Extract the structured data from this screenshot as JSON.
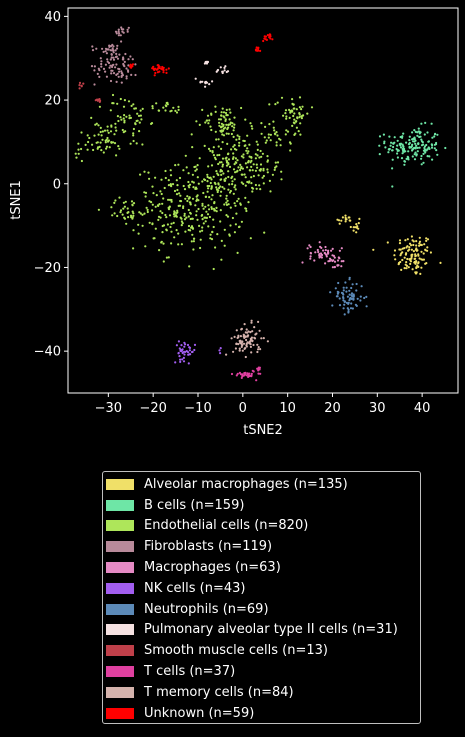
{
  "chart_data": {
    "type": "scatter",
    "xlabel": "tSNE2",
    "ylabel": "tSNE1",
    "xlim": [
      -39,
      48
    ],
    "ylim": [
      -50,
      42
    ],
    "xticks": [
      -30,
      -20,
      -10,
      0,
      10,
      20,
      30,
      40
    ],
    "yticks": [
      -40,
      -20,
      0,
      20,
      40
    ],
    "grid": false,
    "legend_position": "below plot",
    "series": [
      {
        "name": "Alveolar macrophages (n=135)",
        "color": "#f0e068",
        "clusters": [
          {
            "x": 38,
            "y": -17,
            "sx": 2.2,
            "sy": 2.6,
            "n": 110
          },
          {
            "x": 23,
            "y": -8.5,
            "sx": 1.3,
            "sy": 0.6,
            "n": 15
          },
          {
            "x": 25,
            "y": -10.5,
            "sx": 0.6,
            "sy": 0.8,
            "n": 10
          }
        ]
      },
      {
        "name": "B cells (n=159)",
        "color": "#6ee6a6",
        "clusters": [
          {
            "x": 38,
            "y": 9,
            "sx": 3,
            "sy": 2.3,
            "n": 159
          }
        ]
      },
      {
        "name": "Endothelial cells (n=820)",
        "color": "#aee65a",
        "clusters": [
          {
            "x": -12,
            "y": -6,
            "sx": 6,
            "sy": 5,
            "n": 300
          },
          {
            "x": -3,
            "y": 5,
            "sx": 3.5,
            "sy": 6,
            "n": 170
          },
          {
            "x": 3,
            "y": 3,
            "sx": 2.5,
            "sy": 3,
            "n": 60
          },
          {
            "x": 11,
            "y": 17,
            "sx": 2,
            "sy": 2,
            "n": 50
          },
          {
            "x": 8,
            "y": 12,
            "sx": 2,
            "sy": 2,
            "n": 30
          },
          {
            "x": -4.5,
            "y": 15,
            "sx": 2,
            "sy": 2,
            "n": 50
          },
          {
            "x": -26,
            "y": 15,
            "sx": 2.5,
            "sy": 3,
            "n": 60
          },
          {
            "x": -31,
            "y": 10,
            "sx": 2.5,
            "sy": 2,
            "n": 40
          },
          {
            "x": -26,
            "y": -6,
            "sx": 2.5,
            "sy": 1.3,
            "n": 30
          },
          {
            "x": -17,
            "y": 18,
            "sx": 2,
            "sy": 0.8,
            "n": 20
          },
          {
            "x": -35,
            "y": 8,
            "sx": 1.5,
            "sy": 1.2,
            "n": 10
          }
        ]
      },
      {
        "name": "Fibroblasts (n=119)",
        "color": "#b88a9a",
        "clusters": [
          {
            "x": -28,
            "y": 28,
            "sx": 2.5,
            "sy": 1.8,
            "n": 70
          },
          {
            "x": -30,
            "y": 32,
            "sx": 2,
            "sy": 1,
            "n": 34
          },
          {
            "x": -27,
            "y": 36.5,
            "sx": 0.8,
            "sy": 0.5,
            "n": 15
          }
        ]
      },
      {
        "name": "Macrophages (n=63)",
        "color": "#e58ac4",
        "clusters": [
          {
            "x": 17.5,
            "y": -16.5,
            "sx": 1.3,
            "sy": 1.1,
            "n": 40
          },
          {
            "x": 21,
            "y": -18.5,
            "sx": 1,
            "sy": 1.2,
            "n": 23
          }
        ]
      },
      {
        "name": "NK cells (n=43)",
        "color": "#a25ef0",
        "clusters": [
          {
            "x": -13,
            "y": -40,
            "sx": 1.2,
            "sy": 1.1,
            "n": 40
          },
          {
            "x": -5,
            "y": -40,
            "sx": 0.3,
            "sy": 0.3,
            "n": 3
          }
        ]
      },
      {
        "name": "Neutrophils (n=69)",
        "color": "#5c8ab8",
        "clusters": [
          {
            "x": 23.5,
            "y": -27,
            "sx": 1.8,
            "sy": 1.8,
            "n": 69
          }
        ]
      },
      {
        "name": "Pulmonary alveolar type II cells (n=31)",
        "color": "#f5e1e1",
        "clusters": [
          {
            "x": -9,
            "y": 24,
            "sx": 1.2,
            "sy": 0.7,
            "n": 12
          },
          {
            "x": -4.5,
            "y": 27,
            "sx": 0.8,
            "sy": 0.6,
            "n": 12
          },
          {
            "x": -8,
            "y": 29,
            "sx": 0.3,
            "sy": 0.3,
            "n": 7
          }
        ]
      },
      {
        "name": "Smooth muscle cells (n=13)",
        "color": "#c0404a",
        "clusters": [
          {
            "x": -36,
            "y": 23.5,
            "sx": 0.3,
            "sy": 0.4,
            "n": 6
          },
          {
            "x": -32,
            "y": 20,
            "sx": 0.4,
            "sy": 0.3,
            "n": 7
          }
        ]
      },
      {
        "name": "T cells (n=37)",
        "color": "#e040a0",
        "clusters": [
          {
            "x": 0.5,
            "y": -45.5,
            "sx": 1.2,
            "sy": 0.5,
            "n": 30
          },
          {
            "x": 3.5,
            "y": -44.5,
            "sx": 0.4,
            "sy": 0.4,
            "n": 7
          }
        ]
      },
      {
        "name": "T memory cells (n=84)",
        "color": "#d5b3ad",
        "clusters": [
          {
            "x": 1,
            "y": -37.5,
            "sx": 1.6,
            "sy": 1.8,
            "n": 84
          }
        ]
      },
      {
        "name": "Unknown (n=59)",
        "color": "#ff0000",
        "clusters": [
          {
            "x": -18.5,
            "y": 27.5,
            "sx": 1,
            "sy": 0.6,
            "n": 30
          },
          {
            "x": 5.5,
            "y": 35,
            "sx": 0.6,
            "sy": 0.4,
            "n": 15
          },
          {
            "x": -25,
            "y": 28,
            "sx": 0.3,
            "sy": 0.3,
            "n": 6
          },
          {
            "x": 3.5,
            "y": 32,
            "sx": 0.3,
            "sy": 0.4,
            "n": 8
          }
        ]
      }
    ]
  }
}
